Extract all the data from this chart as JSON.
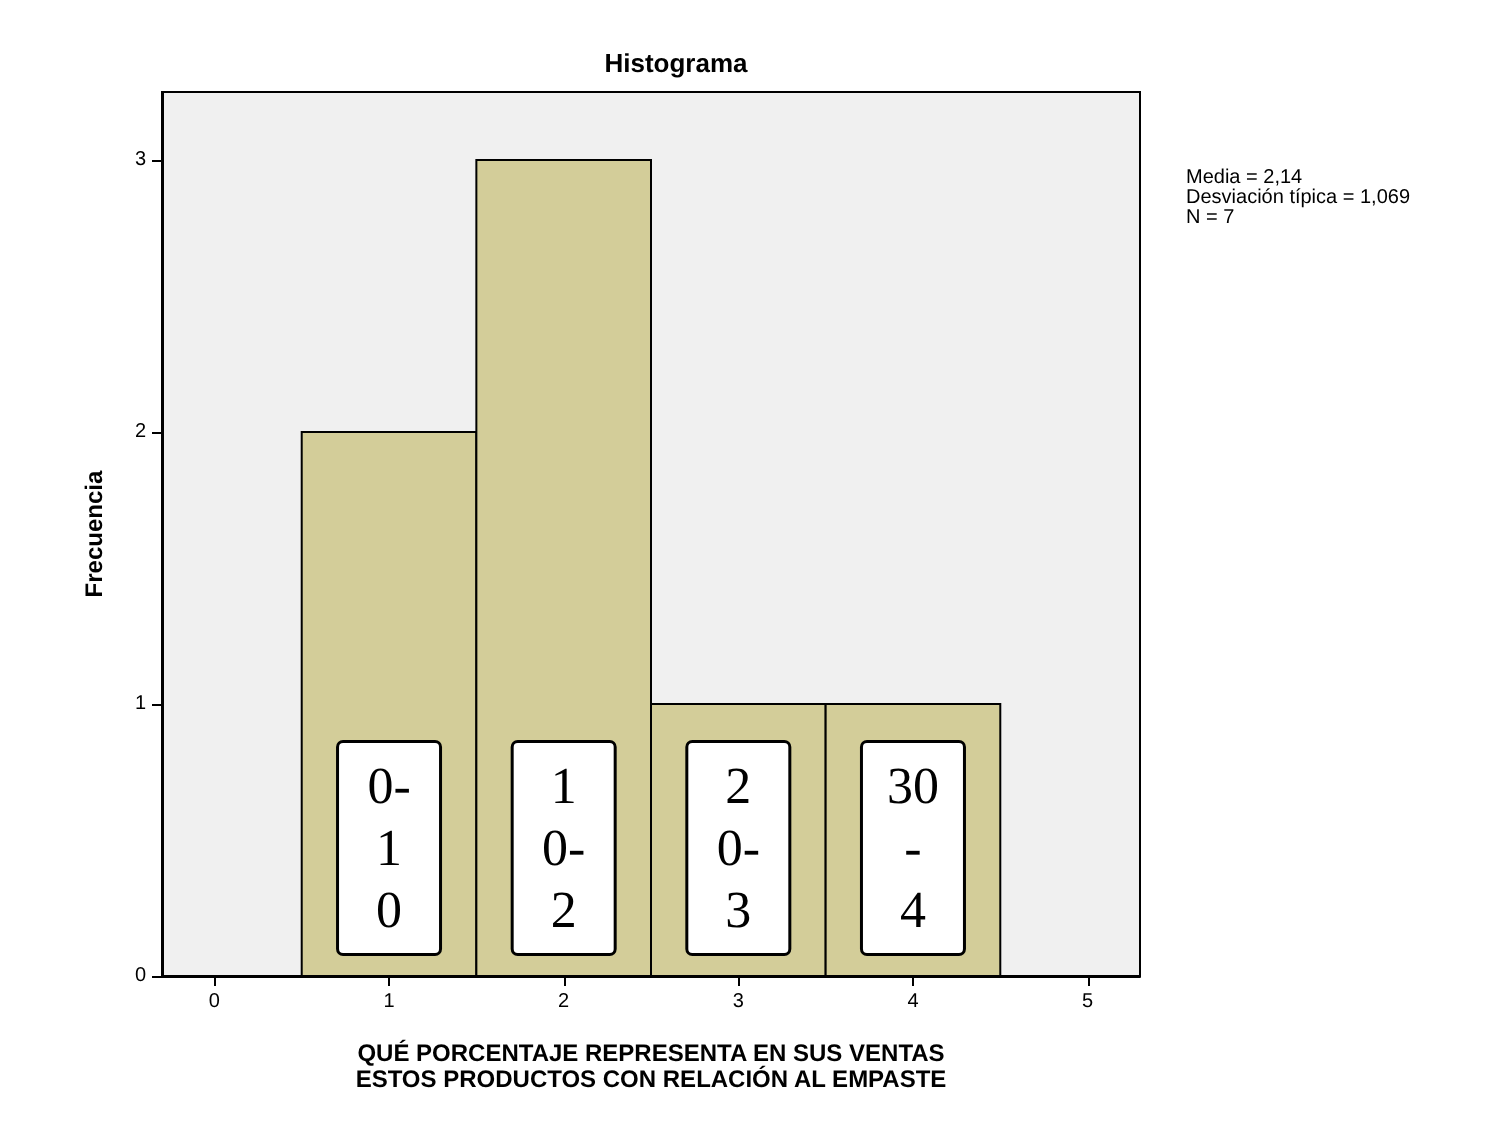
{
  "chart_data": {
    "type": "histogram",
    "title": "Histograma",
    "xlabel": "QUÉ PORCENTAJE REPRESENTA EN SUS VENTAS\nESTOS PRODUCTOS CON RELACIÓN AL EMPASTE",
    "ylabel": "Frecuencia",
    "bins": [
      0.5,
      1.5,
      2.5,
      3.5,
      4.5
    ],
    "values": [
      2,
      3,
      1,
      1
    ],
    "color": "#d3cd99",
    "xlim": [
      -0.3,
      5.3
    ],
    "xticks": [
      0,
      1,
      2,
      3,
      4,
      5
    ],
    "ylim": [
      0,
      3.25
    ],
    "yticks": [
      0,
      1,
      2,
      3
    ],
    "grid": false,
    "annotations": [
      "Media = 2,14\nDesviación típica = 1,069\nN = 7",
      "0-\n1\n0",
      "1\n0-\n2",
      "2\n0-\n3",
      "30\n-\n4"
    ]
  }
}
